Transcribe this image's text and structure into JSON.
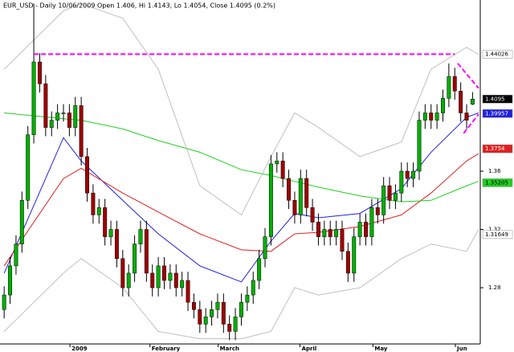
{
  "chart_data": {
    "type": "candlestick",
    "title": "EUR_USD - Daily 10/06/2009 Open 1.406, Hi 1.4143, Lo 1.4054, Close 1.4095 (0.2%)",
    "up_color": "#00b000",
    "down_color": "#a00000",
    "open": [
      1.265,
      1.275,
      1.295,
      1.31,
      1.34,
      1.385,
      1.435,
      1.42,
      1.39,
      1.395,
      1.4,
      1.4,
      1.39,
      1.405,
      1.37,
      1.345,
      1.33,
      1.335,
      1.315,
      1.32,
      1.3,
      1.28,
      1.29,
      1.31,
      1.32,
      1.29,
      1.28,
      1.295,
      1.285,
      1.29,
      1.28,
      1.285,
      1.27,
      1.265,
      1.255,
      1.26,
      1.265,
      1.27,
      1.255,
      1.25,
      1.26,
      1.27,
      1.275,
      1.285,
      1.3,
      1.315,
      1.365,
      1.367,
      1.355,
      1.34,
      1.33,
      1.355,
      1.335,
      1.325,
      1.315,
      1.32,
      1.315,
      1.32,
      1.305,
      1.29,
      1.315,
      1.325,
      1.315,
      1.335,
      1.33,
      1.35,
      1.34,
      1.345,
      1.36,
      1.355,
      1.36,
      1.395,
      1.4,
      1.395,
      1.4,
      1.41,
      1.425,
      1.415,
      1.4,
      1.406
    ],
    "high": [
      1.281,
      1.301,
      1.316,
      1.346,
      1.391,
      1.475,
      1.441,
      1.426,
      1.401,
      1.406,
      1.406,
      1.406,
      1.411,
      1.411,
      1.376,
      1.351,
      1.341,
      1.341,
      1.326,
      1.326,
      1.306,
      1.296,
      1.316,
      1.326,
      1.326,
      1.296,
      1.301,
      1.301,
      1.296,
      1.296,
      1.291,
      1.291,
      1.276,
      1.271,
      1.266,
      1.271,
      1.276,
      1.276,
      1.261,
      1.266,
      1.276,
      1.281,
      1.291,
      1.306,
      1.321,
      1.371,
      1.373,
      1.373,
      1.361,
      1.346,
      1.361,
      1.361,
      1.341,
      1.331,
      1.326,
      1.326,
      1.326,
      1.326,
      1.311,
      1.321,
      1.331,
      1.331,
      1.341,
      1.341,
      1.356,
      1.356,
      1.351,
      1.366,
      1.366,
      1.366,
      1.401,
      1.406,
      1.406,
      1.406,
      1.416,
      1.434,
      1.431,
      1.421,
      1.406,
      1.4143
    ],
    "low": [
      1.259,
      1.269,
      1.289,
      1.304,
      1.334,
      1.379,
      1.414,
      1.384,
      1.384,
      1.389,
      1.394,
      1.384,
      1.384,
      1.364,
      1.339,
      1.324,
      1.324,
      1.309,
      1.309,
      1.294,
      1.274,
      1.274,
      1.284,
      1.304,
      1.284,
      1.274,
      1.274,
      1.279,
      1.279,
      1.274,
      1.274,
      1.264,
      1.259,
      1.249,
      1.249,
      1.254,
      1.259,
      1.249,
      1.244,
      1.244,
      1.254,
      1.264,
      1.269,
      1.279,
      1.294,
      1.309,
      1.359,
      1.349,
      1.334,
      1.324,
      1.324,
      1.329,
      1.319,
      1.309,
      1.309,
      1.309,
      1.309,
      1.299,
      1.284,
      1.284,
      1.309,
      1.309,
      1.309,
      1.324,
      1.324,
      1.334,
      1.334,
      1.339,
      1.349,
      1.349,
      1.354,
      1.389,
      1.389,
      1.389,
      1.394,
      1.404,
      1.409,
      1.394,
      1.389,
      1.4054
    ],
    "close": [
      1.275,
      1.295,
      1.31,
      1.34,
      1.385,
      1.435,
      1.42,
      1.39,
      1.395,
      1.4,
      1.4,
      1.39,
      1.405,
      1.37,
      1.345,
      1.33,
      1.335,
      1.315,
      1.32,
      1.3,
      1.28,
      1.29,
      1.31,
      1.32,
      1.29,
      1.28,
      1.295,
      1.285,
      1.29,
      1.28,
      1.285,
      1.27,
      1.265,
      1.255,
      1.26,
      1.265,
      1.27,
      1.255,
      1.25,
      1.26,
      1.27,
      1.275,
      1.285,
      1.3,
      1.315,
      1.365,
      1.367,
      1.355,
      1.34,
      1.33,
      1.355,
      1.335,
      1.325,
      1.315,
      1.32,
      1.315,
      1.32,
      1.305,
      1.29,
      1.315,
      1.325,
      1.315,
      1.335,
      1.33,
      1.35,
      1.34,
      1.345,
      1.36,
      1.355,
      1.36,
      1.395,
      1.4,
      1.395,
      1.4,
      1.41,
      1.425,
      1.415,
      1.4,
      1.395,
      1.4095
    ],
    "xlim": [
      -0.7,
      80.3
    ],
    "ylim": [
      1.2414,
      1.4775
    ],
    "yticks": [
      1.28,
      1.32,
      1.36
    ],
    "xticks": [
      {
        "value": 11.1,
        "label": "2009"
      },
      {
        "value": 24.6,
        "label": "February"
      },
      {
        "value": 36.1,
        "label": "March"
      },
      {
        "value": 49.9,
        "label": "April"
      },
      {
        "value": 62.2,
        "label": "May"
      },
      {
        "value": 76.1,
        "label": "Jun"
      }
    ],
    "lines": [
      {
        "color": "#2020e0",
        "x": [
          0,
          10,
          13,
          20,
          26,
          33,
          40,
          45,
          49,
          53,
          60,
          67,
          72,
          78,
          80
        ],
        "values": [
          1.29,
          1.383,
          1.367,
          1.34,
          1.317,
          1.295,
          1.284,
          1.312,
          1.331,
          1.328,
          1.331,
          1.348,
          1.373,
          1.397,
          1.4
        ]
      },
      {
        "color": "#e02020",
        "x": [
          0,
          10,
          13,
          20,
          26,
          33,
          40,
          45,
          49,
          53,
          60,
          67,
          72,
          78,
          80
        ],
        "values": [
          1.295,
          1.355,
          1.362,
          1.345,
          1.332,
          1.317,
          1.306,
          1.305,
          1.317,
          1.318,
          1.322,
          1.33,
          1.345,
          1.367,
          1.372
        ]
      },
      {
        "color": "#20d020",
        "x": [
          0,
          10,
          13,
          20,
          26,
          33,
          40,
          45,
          49,
          53,
          60,
          67,
          72,
          78,
          80
        ],
        "values": [
          1.4,
          1.396,
          1.395,
          1.389,
          1.381,
          1.373,
          1.361,
          1.357,
          1.353,
          1.349,
          1.343,
          1.339,
          1.34,
          1.35,
          1.353
        ]
      },
      {
        "color": "#c0c0c0",
        "x": [
          0,
          10,
          13,
          20,
          26,
          33,
          40,
          45,
          49,
          53,
          60,
          67,
          72,
          78,
          80
        ],
        "values": [
          1.43,
          1.47,
          1.475,
          1.465,
          1.43,
          1.35,
          1.33,
          1.37,
          1.4,
          1.39,
          1.37,
          1.38,
          1.43,
          1.445,
          1.44
        ]
      },
      {
        "color": "#c0c0c0",
        "x": [
          0,
          10,
          13,
          20,
          26,
          33,
          40,
          45,
          49,
          53,
          60,
          67,
          72,
          78,
          80
        ],
        "values": [
          1.25,
          1.29,
          1.3,
          1.28,
          1.25,
          1.245,
          1.245,
          1.25,
          1.28,
          1.275,
          1.28,
          1.3,
          1.31,
          1.305,
          1.32
        ]
      }
    ],
    "trendlines": [
      {
        "color": "#ff00ff",
        "x": [
          5,
          76
        ],
        "values": [
          1.4403,
          1.4403
        ]
      },
      {
        "color": "#ff00ff",
        "x": [
          76.5,
          80
        ],
        "values": [
          1.434,
          1.417
        ]
      },
      {
        "color": "#ff00ff",
        "x": [
          77.5,
          80
        ],
        "values": [
          1.386,
          1.399
        ]
      }
    ],
    "price_labels": [
      {
        "value": 1.44026,
        "color": "#ffffff",
        "text_color": "#000000"
      },
      {
        "value": 1.4095,
        "color": "#000000",
        "text_color": "#ffffff"
      },
      {
        "value": 1.39957,
        "color": "#2020e0",
        "text_color": "#ffffff"
      },
      {
        "value": 1.3754,
        "color": "#e02020",
        "text_color": "#ffffff"
      },
      {
        "value": 1.35205,
        "color": "#20d020",
        "text_color": "#000000"
      },
      {
        "value": 1.31649,
        "color": "#ffffff",
        "text_color": "#000000"
      }
    ]
  }
}
